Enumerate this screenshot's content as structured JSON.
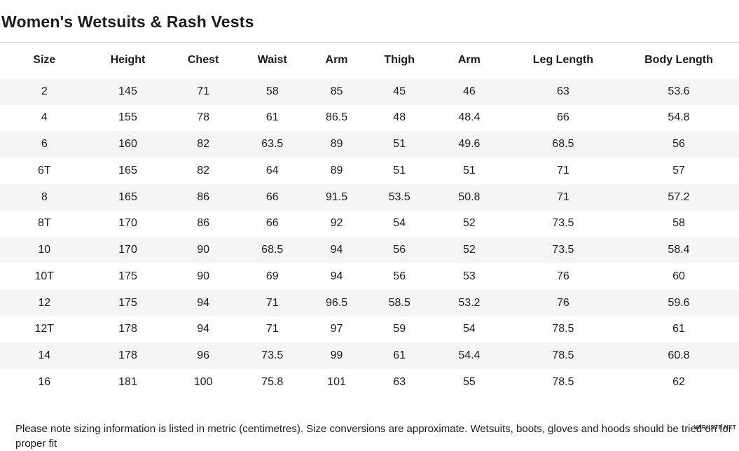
{
  "page": {
    "title": "Women's Wetsuits & Rash Vests",
    "footnote": "Please note sizing information is listed in metric (centimetres). Size conversions are approximate. Wetsuits, boots, gloves and hoods should be tried on for proper fit",
    "watermark": "VARUSTE.NET"
  },
  "colors": {
    "text": "#1c1c1e",
    "row_stripe": "#f5f5f5",
    "divider": "#dcdcdc",
    "background": "#ffffff"
  },
  "chart_data": {
    "type": "table",
    "title": "Women's Wetsuits & Rash Vests",
    "columns": [
      "Size",
      "Height",
      "Chest",
      "Waist",
      "Arm",
      "Thigh",
      "Arm",
      "Leg Length",
      "Body Length"
    ],
    "rows": [
      [
        "2",
        "145",
        "71",
        "58",
        "85",
        "45",
        "46",
        "63",
        "53.6"
      ],
      [
        "4",
        "155",
        "78",
        "61",
        "86.5",
        "48",
        "48.4",
        "66",
        "54.8"
      ],
      [
        "6",
        "160",
        "82",
        "63.5",
        "89",
        "51",
        "49.6",
        "68.5",
        "56"
      ],
      [
        "6T",
        "165",
        "82",
        "64",
        "89",
        "51",
        "51",
        "71",
        "57"
      ],
      [
        "8",
        "165",
        "86",
        "66",
        "91.5",
        "53.5",
        "50.8",
        "71",
        "57.2"
      ],
      [
        "8T",
        "170",
        "86",
        "66",
        "92",
        "54",
        "52",
        "73.5",
        "58"
      ],
      [
        "10",
        "170",
        "90",
        "68.5",
        "94",
        "56",
        "52",
        "73.5",
        "58.4"
      ],
      [
        "10T",
        "175",
        "90",
        "69",
        "94",
        "56",
        "53",
        "76",
        "60"
      ],
      [
        "12",
        "175",
        "94",
        "71",
        "96.5",
        "58.5",
        "53.2",
        "76",
        "59.6"
      ],
      [
        "12T",
        "178",
        "94",
        "71",
        "97",
        "59",
        "54",
        "78.5",
        "61"
      ],
      [
        "14",
        "178",
        "96",
        "73.5",
        "99",
        "61",
        "54.4",
        "78.5",
        "60.8"
      ],
      [
        "16",
        "181",
        "100",
        "75.8",
        "101",
        "63",
        "55",
        "78.5",
        "62"
      ]
    ]
  }
}
